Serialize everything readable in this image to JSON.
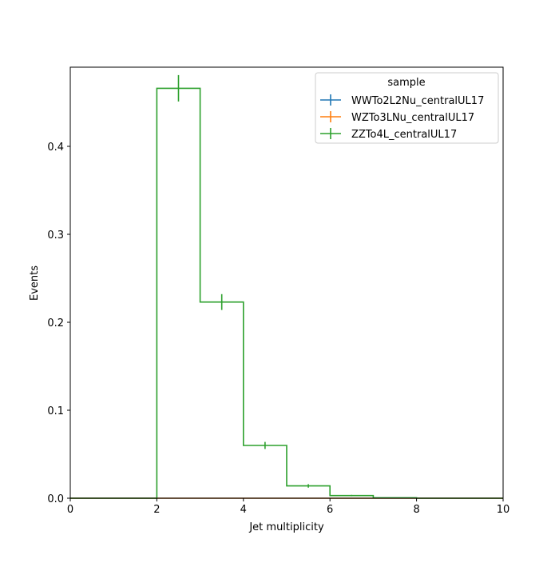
{
  "chart_data": {
    "type": "histogram-step",
    "xlabel": "Jet multiplicity",
    "ylabel": "Events",
    "xlim": [
      0,
      10
    ],
    "ylim": [
      0,
      0.49
    ],
    "x_ticks": [
      0,
      2,
      4,
      6,
      8,
      10
    ],
    "y_ticks": [
      0.0,
      0.1,
      0.2,
      0.3,
      0.4
    ],
    "x_tick_labels": [
      "0",
      "2",
      "4",
      "6",
      "8",
      "10"
    ],
    "y_tick_labels": [
      "0.0",
      "0.1",
      "0.2",
      "0.3",
      "0.4"
    ],
    "bin_edges": [
      0,
      1,
      2,
      3,
      4,
      5,
      6,
      7,
      8,
      9,
      10
    ],
    "legend": {
      "title": "sample",
      "placement": "top-right"
    },
    "series": [
      {
        "name": "WWTo2L2Nu_centralUL17",
        "color": "#1f77b4",
        "values": [
          0,
          0,
          0,
          0,
          0,
          0,
          0,
          0,
          0,
          0
        ],
        "errors": [
          0,
          0,
          0,
          0,
          0,
          0,
          0,
          0,
          0,
          0
        ]
      },
      {
        "name": "WZTo3LNu_centralUL17",
        "color": "#ff7f0e",
        "values": [
          0,
          0,
          0,
          0,
          0,
          0,
          0,
          0,
          0,
          0
        ],
        "errors": [
          0,
          0,
          0,
          0,
          0,
          0,
          0,
          0,
          0,
          0
        ]
      },
      {
        "name": "ZZTo4L_centralUL17",
        "color": "#2ca02c",
        "values": [
          0,
          0,
          0.466,
          0.223,
          0.06,
          0.014,
          0.003,
          0.0005,
          0,
          0
        ],
        "errors": [
          0,
          0,
          0.015,
          0.009,
          0.004,
          0.002,
          0.0008,
          0.0003,
          0,
          0
        ]
      }
    ]
  }
}
